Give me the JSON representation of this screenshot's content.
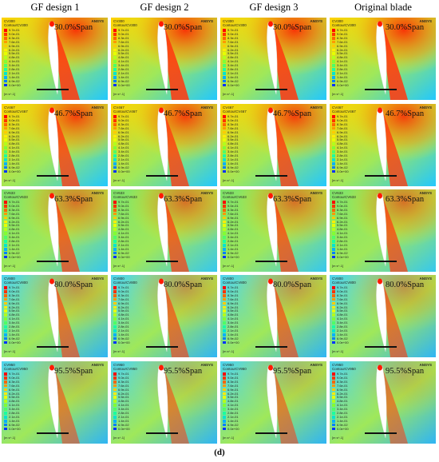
{
  "columns": [
    "GF design 1",
    "GF design 2",
    "GF design 3",
    "Original blade"
  ],
  "rows": [
    {
      "span": "30.0%Span",
      "var": "CV300",
      "contour": "ContourCV300"
    },
    {
      "span": "46.7%Span",
      "var": "CV467",
      "contour": "ContourCV467"
    },
    {
      "span": "63.3%Span",
      "var": "CV633",
      "contour": "ContourCV633"
    },
    {
      "span": "80.0%Span",
      "var": "CV800",
      "contour": "ContourCV800"
    },
    {
      "span": "95.5%Span",
      "var": "CV950",
      "contour": "ContourCV950"
    }
  ],
  "legend_ticks": [
    "9.7e-01",
    "9.0e-01",
    "8.3e-01",
    "7.6e-01",
    "6.9e-01",
    "6.2e-01",
    "5.5e-01",
    "4.8e-01",
    "4.1e-01",
    "3.4e-01",
    "2.8e-01",
    "2.1e-01",
    "1.4e-01",
    "6.9e-02",
    "0.0e+00"
  ],
  "legend_colors": [
    "#ff0000",
    "#ff3300",
    "#ff6600",
    "#ff9900",
    "#ffcc00",
    "#ffee00",
    "#e6ff00",
    "#b3ff1a",
    "#80ff33",
    "#4dff66",
    "#1affa0",
    "#00e6d0",
    "#00b3ff",
    "#0080ff",
    "#0033ff"
  ],
  "unit_label": "[m s^-1]",
  "brand": "ANSYS",
  "caption": "(d)"
}
